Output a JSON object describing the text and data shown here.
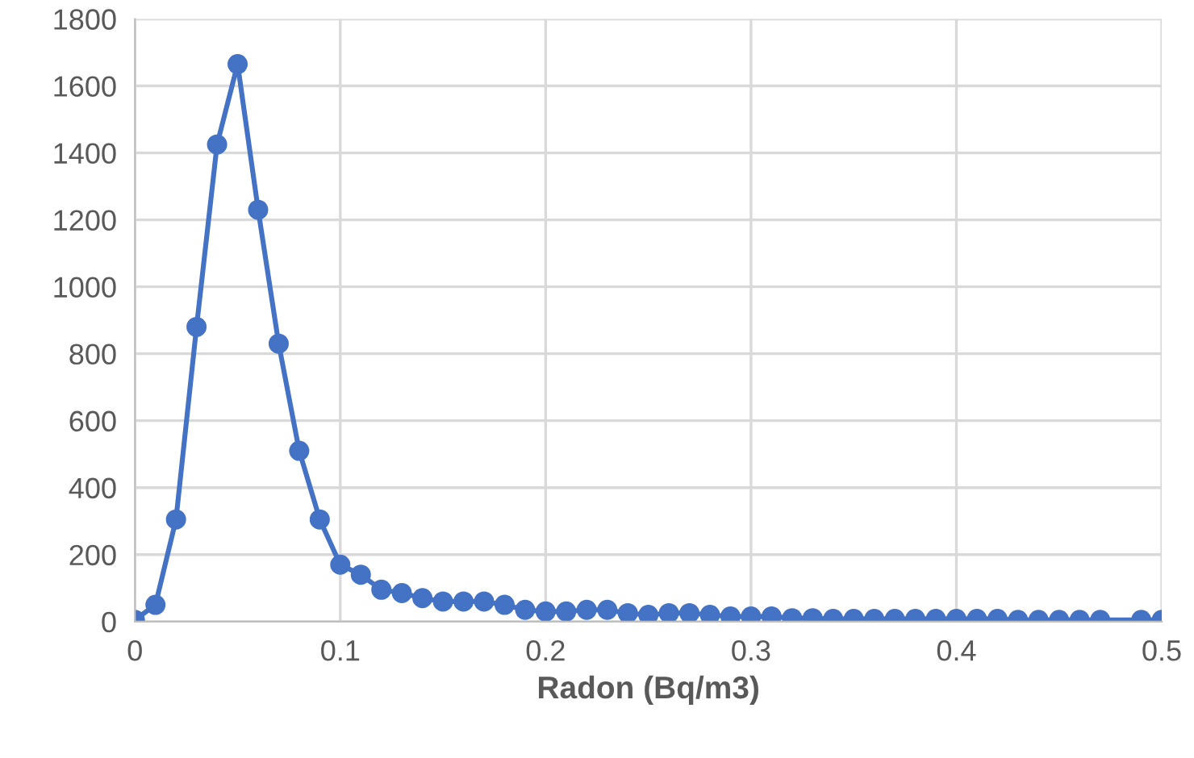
{
  "chart_data": {
    "type": "line",
    "xlabel": "Radon (Bq/m3)",
    "x": [
      0,
      0.01,
      0.02,
      0.03,
      0.04,
      0.05,
      0.06,
      0.07,
      0.08,
      0.09,
      0.1,
      0.11,
      0.12,
      0.13,
      0.14,
      0.15,
      0.16,
      0.17,
      0.18,
      0.19,
      0.2,
      0.21,
      0.22,
      0.23,
      0.24,
      0.25,
      0.26,
      0.27,
      0.28,
      0.29,
      0.3,
      0.31,
      0.32,
      0.33,
      0.34,
      0.35,
      0.36,
      0.37,
      0.38,
      0.39,
      0.4,
      0.41,
      0.42,
      0.43,
      0.44,
      0.45,
      0.46,
      0.47,
      0.49,
      0.5
    ],
    "series": [
      {
        "color": "#4472c4",
        "values": [
          5,
          50,
          305,
          880,
          1425,
          1665,
          1230,
          830,
          510,
          305,
          170,
          140,
          95,
          85,
          70,
          60,
          60,
          60,
          50,
          35,
          30,
          30,
          35,
          35,
          25,
          20,
          25,
          25,
          20,
          15,
          15,
          15,
          10,
          10,
          8,
          8,
          8,
          8,
          8,
          8,
          8,
          8,
          8,
          5,
          5,
          5,
          5,
          5,
          5,
          5
        ]
      }
    ],
    "xlim": [
      0,
      0.5
    ],
    "xticks": [
      0,
      0.1,
      0.2,
      0.3,
      0.4,
      0.5
    ],
    "ylim": [
      0,
      1800
    ],
    "yticks": [
      0,
      200,
      400,
      600,
      800,
      1000,
      1200,
      1400,
      1600,
      1800
    ],
    "grid": true,
    "marker": "circle",
    "line_style": "solid",
    "legend": false
  }
}
